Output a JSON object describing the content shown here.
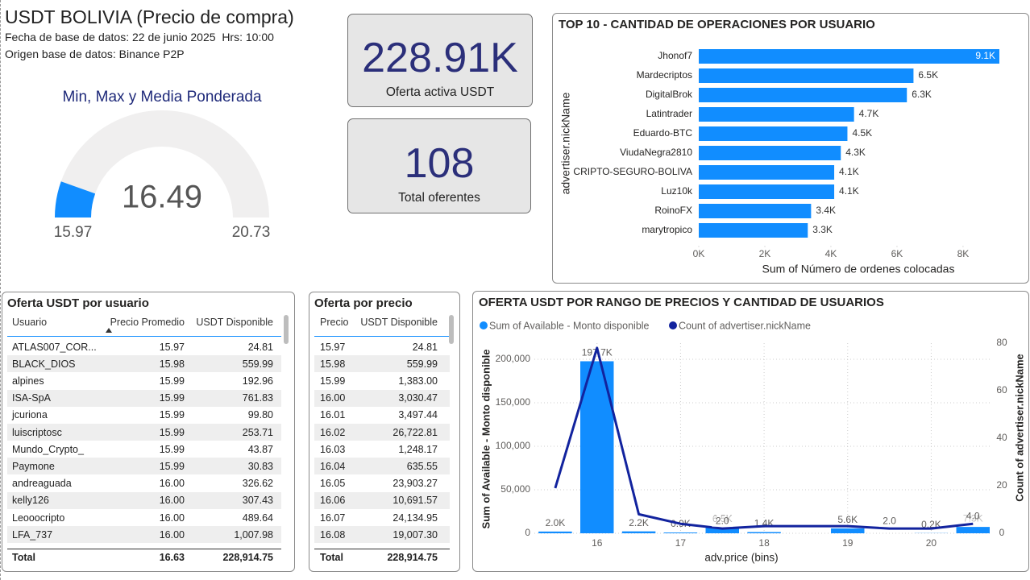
{
  "header": {
    "title": "USDT BOLIVIA (Precio de compra)",
    "lines": [
      "Fecha de base de datos: 22 de junio 2025  Hrs: 10:00",
      "Origen base de datos: Binance P2P"
    ]
  },
  "kpis": [
    {
      "value": "228.91K",
      "label": "Oferta activa USDT"
    },
    {
      "value": 108,
      "label": "Total oferentes"
    }
  ],
  "chart_data": [
    {
      "type": "gauge",
      "title": "Min, Max y Media Ponderada",
      "value": 16.49,
      "min": 15.97,
      "max": 20.73,
      "color": "#118DFF",
      "track_color": "#f0efef"
    },
    {
      "type": "hbar",
      "title": "TOP 10 - CANTIDAD DE OPERACIONES POR USUARIO",
      "y_label": "advertiser.nickName",
      "x_label": "Sum of Número de ordenes colocadas",
      "categories": [
        "Jhonof7",
        "Mardecriptos",
        "DigitalBrok",
        "Latintrader",
        "Eduardo-BTC",
        "ViudaNegra2810",
        "CRIPTO-SEGURO-BOLIVA",
        "Luz10k",
        "RoinoFX",
        "marytropico"
      ],
      "values": [
        9100,
        6500,
        6300,
        4700,
        4500,
        4300,
        4100,
        4100,
        3400,
        3300
      ],
      "value_labels": [
        "9.1K",
        "6.5K",
        "6.3K",
        "4.7K",
        "4.5K",
        "4.3K",
        "4.1K",
        "4.1K",
        "3.4K",
        "3.3K"
      ],
      "color": "#118DFF",
      "xlim": [
        0,
        9100
      ],
      "xticks": [
        {
          "value": 0,
          "label": "0K"
        },
        {
          "value": 2000,
          "label": "2K"
        },
        {
          "value": 4000,
          "label": "4K"
        },
        {
          "value": 6000,
          "label": "6K"
        },
        {
          "value": 8000,
          "label": "8K"
        }
      ],
      "grid": false
    },
    {
      "type": "combo",
      "title": "OFERTA USDT POR RANGO DE PRECIOS Y CANTIDAD DE USUARIOS",
      "x_label": "adv.price (bins)",
      "y_label": "Sum of Available - Monto disponible",
      "y2_label": "Count of advertiser.nickName",
      "x": [
        15.5,
        16,
        16.5,
        17,
        17.5,
        18,
        18.5,
        19,
        19.5,
        20,
        20.5
      ],
      "series": [
        {
          "name": "Sum of Available - Monto disponible",
          "color": "#118DFF",
          "kind": "bar",
          "values": [
            2000,
            197700,
            2200,
            900,
            6500,
            1400,
            null,
            5600,
            null,
            200,
            7300
          ],
          "value_labels": [
            "2.0K",
            "197.7K",
            "2.2K",
            "0.9K",
            "6.5K",
            "1.4K",
            null,
            "5.6K",
            null,
            "0.2K",
            "7.3K"
          ]
        },
        {
          "name": "Count of advertiser.nickName",
          "color": "#12239E",
          "kind": "line",
          "axis": "y2",
          "values": [
            19,
            78,
            8,
            4,
            2,
            3,
            3,
            3,
            2,
            2,
            4
          ],
          "value_labels": [
            null,
            null,
            null,
            null,
            "2.0",
            null,
            null,
            null,
            "2.0",
            null,
            "4.0"
          ]
        }
      ],
      "bin_width": 0.4,
      "xlim": [
        15.25,
        20.7
      ],
      "xticks": [
        16,
        17,
        18,
        19,
        20
      ],
      "ylim": [
        0,
        218500
      ],
      "yticks": [
        0,
        {
          "value": 50000,
          "label": "50,000"
        },
        {
          "value": 100000,
          "label": "100,000"
        },
        {
          "value": 150000,
          "label": "150,000"
        },
        {
          "value": 200000,
          "label": "200,000"
        }
      ],
      "y2lim": [
        0,
        80
      ],
      "y2ticks": [
        0,
        20,
        40,
        60,
        80
      ],
      "grid": true,
      "legend": "top-left"
    }
  ],
  "tables": [
    {
      "title": "Oferta USDT por usuario",
      "columns": [
        "Usuario",
        "Precio Promedio",
        "USDT Disponible"
      ],
      "rows": [
        [
          "ATLAS007_COR...",
          "15.97",
          "24.81"
        ],
        [
          "BLACK_DIOS",
          "15.98",
          "559.99"
        ],
        [
          "alpines",
          "15.99",
          "192.96"
        ],
        [
          "ISA-SpA",
          "15.99",
          "761.83"
        ],
        [
          "jcuriona",
          "15.99",
          "99.80"
        ],
        [
          "luiscriptosc",
          "15.99",
          "253.71"
        ],
        [
          "Mundo_Crypto_",
          "15.99",
          "43.87"
        ],
        [
          "Paymone",
          "15.99",
          "30.83"
        ],
        [
          "andreaguada",
          "16.00",
          "326.62"
        ],
        [
          "kelly126",
          "16.00",
          "307.43"
        ],
        [
          "Leooocripto",
          "16.00",
          "489.64"
        ],
        [
          "LFA_737",
          "16.00",
          "1,007.98"
        ]
      ],
      "total": [
        "Total",
        "16.63",
        "228,914.75"
      ]
    },
    {
      "title": "Oferta por precio",
      "columns": [
        "Precio",
        "USDT Disponible"
      ],
      "rows": [
        [
          "15.97",
          "24.81"
        ],
        [
          "15.98",
          "559.99"
        ],
        [
          "15.99",
          "1,383.00"
        ],
        [
          "16.00",
          "3,030.47"
        ],
        [
          "16.01",
          "3,497.44"
        ],
        [
          "16.02",
          "26,722.81"
        ],
        [
          "16.03",
          "1,248.17"
        ],
        [
          "16.04",
          "635.55"
        ],
        [
          "16.05",
          "23,903.27"
        ],
        [
          "16.06",
          "10,691.57"
        ],
        [
          "16.07",
          "24,134.95"
        ],
        [
          "16.08",
          "19,007.30"
        ]
      ],
      "total": [
        "Total",
        "228,914.75"
      ]
    }
  ]
}
